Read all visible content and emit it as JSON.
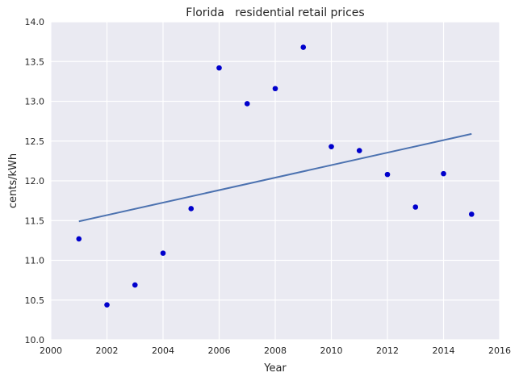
{
  "chart_data": {
    "type": "scatter",
    "title": "Florida   residential retail prices",
    "xlabel": "Year",
    "ylabel": "cents/kWh",
    "xlim": [
      2000,
      2016
    ],
    "ylim": [
      10.0,
      14.0
    ],
    "xticks": [
      2000,
      2002,
      2004,
      2006,
      2008,
      2010,
      2012,
      2014,
      2016
    ],
    "yticks": [
      "10.0",
      "10.5",
      "11.0",
      "11.5",
      "12.0",
      "12.5",
      "13.0",
      "13.5",
      "14.0"
    ],
    "grid": true,
    "points": [
      {
        "x": 2001,
        "y": 11.27
      },
      {
        "x": 2002,
        "y": 10.44
      },
      {
        "x": 2003,
        "y": 10.69
      },
      {
        "x": 2004,
        "y": 11.09
      },
      {
        "x": 2005,
        "y": 11.65
      },
      {
        "x": 2006,
        "y": 13.42
      },
      {
        "x": 2007,
        "y": 12.97
      },
      {
        "x": 2008,
        "y": 13.16
      },
      {
        "x": 2009,
        "y": 13.68
      },
      {
        "x": 2010,
        "y": 12.43
      },
      {
        "x": 2011,
        "y": 12.38
      },
      {
        "x": 2012,
        "y": 12.08
      },
      {
        "x": 2013,
        "y": 11.67
      },
      {
        "x": 2014,
        "y": 12.09
      },
      {
        "x": 2015,
        "y": 11.58
      }
    ],
    "trend_line": {
      "x": [
        2001,
        2015
      ],
      "y": [
        11.49,
        12.59
      ]
    },
    "colors": {
      "plot_background": "#EAEAF2",
      "grid": "#FFFFFF",
      "points": "#0000CC",
      "trend_line": "#4C72B0",
      "text": "#262626"
    }
  }
}
